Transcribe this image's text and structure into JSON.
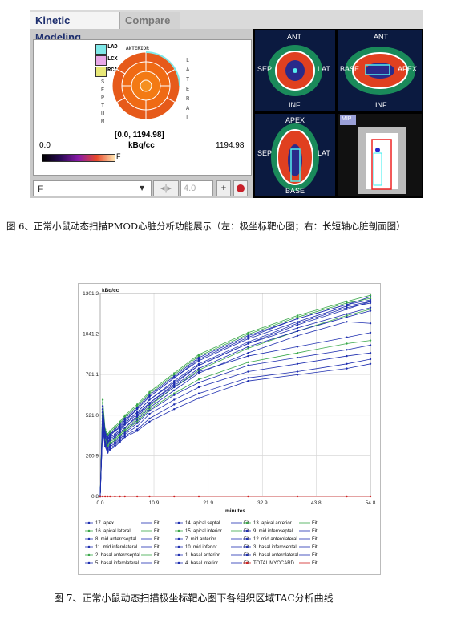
{
  "tabs": {
    "active": "Kinetic Modeling",
    "inactive": "Compare"
  },
  "polar": {
    "legend": [
      "LAD",
      "LCX",
      "RCA"
    ],
    "legend_colors": [
      "#7fe8e8",
      "#e8a8e8",
      "#e8e878"
    ],
    "anterior": "ANTERIOR",
    "lateral": "LATERAL",
    "septum": "SEPTUM",
    "range": "[0.0, 1194.98]",
    "unit": "kBq/cc",
    "scale_min": "0.0",
    "scale_max": "1194.98",
    "scale_F": "F"
  },
  "controls": {
    "select_value": "F",
    "number_value": "4.0",
    "plus": "+"
  },
  "slices": {
    "s1": {
      "top": "ANT",
      "left": "SEP",
      "right": "LAT",
      "bottom": "INF"
    },
    "s2": {
      "top": "ANT",
      "left": "BASE",
      "right": "APEX",
      "bottom": "INF"
    },
    "s3": {
      "top": "APEX",
      "left": "SEP",
      "right": "LAT",
      "bottom": "BASE"
    },
    "s4": {
      "tag": "MIP"
    }
  },
  "caption1": "图 6、正常小鼠动态扫描PMOD心脏分析功能展示（左：极坐标靶心图；右：长短轴心脏剖面图）",
  "caption2": "图 7、正常小鼠动态扫描极坐标靶心图下各组织区域TAC分析曲线",
  "colors": {
    "blue": "#1f2fb0",
    "green": "#3aa84a",
    "red": "#d02020",
    "slate": "#5a6acc"
  },
  "chart_data": {
    "type": "line",
    "ylabel": "kBq/cc",
    "xlabel": "minutes",
    "x_ticks": [
      "0.0",
      "10.9",
      "21.9",
      "32.9",
      "43.8",
      "54.8"
    ],
    "y_ticks": [
      "0.8",
      "260.9",
      "521.0",
      "781.1",
      "1041.2",
      "1301.3"
    ],
    "xlim": [
      0,
      54.8
    ],
    "ylim": [
      0.8,
      1301.3
    ],
    "x": [
      0,
      0.5,
      1,
      1.5,
      2,
      3,
      4,
      5,
      7.5,
      10,
      15,
      20,
      30,
      40,
      50,
      54.8
    ],
    "series": [
      {
        "name": "17. apex",
        "color": "#1f2fb0",
        "values": [
          0.8,
          560,
          420,
          380,
          400,
          420,
          440,
          480,
          560,
          640,
          760,
          880,
          1020,
          1140,
          1230,
          1280
        ]
      },
      {
        "name": "16. apical lateral",
        "color": "#3aa84a",
        "values": [
          0.8,
          600,
          420,
          390,
          410,
          440,
          470,
          510,
          580,
          660,
          780,
          900,
          1040,
          1150,
          1240,
          1270
        ]
      },
      {
        "name": "8. mid anteroseptal",
        "color": "#1f2fb0",
        "values": [
          0.8,
          520,
          380,
          350,
          360,
          380,
          410,
          440,
          520,
          600,
          720,
          840,
          980,
          1100,
          1200,
          1250
        ]
      },
      {
        "name": "11. mid inferolateral",
        "color": "#1f2fb0",
        "values": [
          0.8,
          540,
          400,
          370,
          380,
          400,
          430,
          470,
          540,
          620,
          740,
          850,
          990,
          1110,
          1210,
          1240
        ]
      },
      {
        "name": "2. basal anteroseptal",
        "color": "#3aa84a",
        "values": [
          0.8,
          500,
          370,
          330,
          350,
          370,
          400,
          430,
          500,
          580,
          700,
          810,
          950,
          1060,
          1160,
          1200
        ]
      },
      {
        "name": "5. basal inferolateral",
        "color": "#1f2fb0",
        "values": [
          0.8,
          480,
          360,
          320,
          340,
          360,
          390,
          420,
          490,
          570,
          680,
          790,
          920,
          1030,
          1120,
          1110
        ]
      },
      {
        "name": "14. apical septal",
        "color": "#1f2fb0",
        "values": [
          0.8,
          520,
          380,
          340,
          360,
          380,
          410,
          440,
          510,
          590,
          700,
          800,
          900,
          960,
          1020,
          1050
        ]
      },
      {
        "name": "15. apical inferior",
        "color": "#3aa84a",
        "values": [
          0.8,
          500,
          360,
          320,
          340,
          360,
          390,
          420,
          480,
          560,
          660,
          750,
          860,
          920,
          980,
          1000
        ]
      },
      {
        "name": "7. mid anterior",
        "color": "#1f2fb0",
        "values": [
          0.8,
          480,
          350,
          310,
          330,
          350,
          380,
          410,
          470,
          550,
          650,
          730,
          840,
          890,
          940,
          970
        ]
      },
      {
        "name": "10. mid inferior",
        "color": "#1f2fb0",
        "values": [
          0.8,
          460,
          340,
          300,
          320,
          340,
          370,
          400,
          450,
          530,
          620,
          700,
          800,
          850,
          900,
          920
        ]
      },
      {
        "name": "1. basal anterior",
        "color": "#1f2fb0",
        "values": [
          0.8,
          440,
          330,
          290,
          310,
          330,
          360,
          390,
          430,
          500,
          590,
          660,
          760,
          800,
          850,
          880
        ]
      },
      {
        "name": "4. basal inferior",
        "color": "#1f2fb0",
        "values": [
          0.8,
          430,
          320,
          280,
          300,
          320,
          350,
          380,
          420,
          480,
          560,
          630,
          740,
          780,
          820,
          850
        ]
      },
      {
        "name": "13. apical anterior",
        "color": "#3aa84a",
        "values": [
          0.8,
          620,
          430,
          400,
          420,
          450,
          480,
          520,
          590,
          670,
          790,
          910,
          1050,
          1160,
          1250,
          1290
        ]
      },
      {
        "name": "9. mid inferoseptal",
        "color": "#1f2fb0",
        "values": [
          0.8,
          580,
          410,
          380,
          400,
          430,
          460,
          500,
          570,
          650,
          770,
          890,
          1030,
          1140,
          1230,
          1260
        ]
      },
      {
        "name": "12. mid anterolateral",
        "color": "#1f2fb0",
        "values": [
          0.8,
          560,
          400,
          370,
          390,
          420,
          450,
          490,
          560,
          640,
          760,
          870,
          1010,
          1120,
          1220,
          1250
        ]
      },
      {
        "name": "3. basal inferoseptal",
        "color": "#1f2fb0",
        "values": [
          0.8,
          540,
          390,
          360,
          380,
          400,
          430,
          470,
          540,
          620,
          730,
          840,
          980,
          1080,
          1170,
          1210
        ]
      },
      {
        "name": "6. basal anterolateral",
        "color": "#1f2fb0",
        "values": [
          0.8,
          520,
          380,
          350,
          370,
          390,
          420,
          460,
          530,
          600,
          710,
          820,
          960,
          1060,
          1150,
          1190
        ]
      },
      {
        "name": "TOTAL MYOCARD",
        "color": "#d02020",
        "values": [
          0.8,
          0.8,
          0.8,
          0.8,
          0.8,
          0.8,
          0.8,
          0.8,
          0.8,
          0.8,
          0.8,
          0.8,
          0.8,
          0.8,
          0.8,
          0.8
        ]
      }
    ],
    "legend_fit": "Fit"
  }
}
